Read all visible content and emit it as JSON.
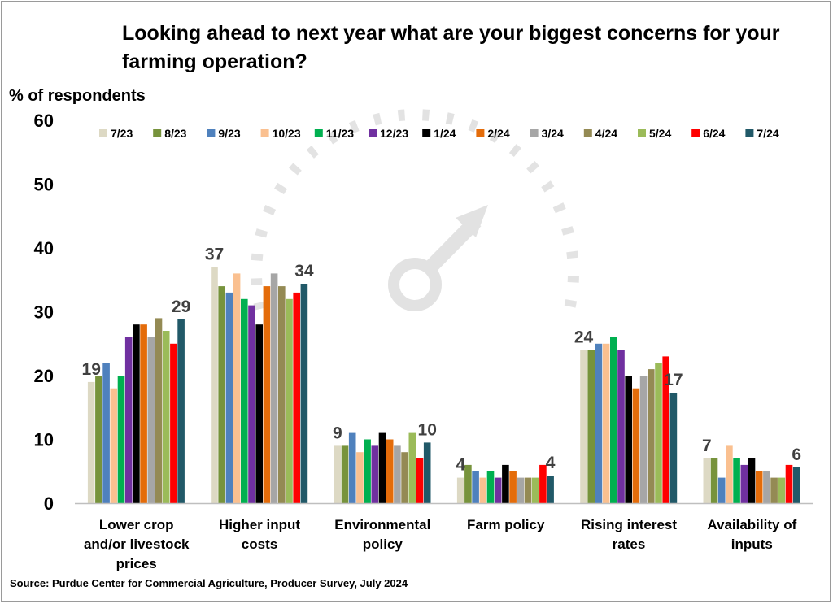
{
  "chart_data": {
    "type": "bar",
    "title": "Looking ahead to next year what are your biggest concerns for your farming operation?",
    "ylabel": "% of respondents",
    "source": "Source: Purdue Center for Commercial Agriculture, Producer Survey, July 2024",
    "ylim": [
      0,
      60
    ],
    "yticks": [
      0,
      10,
      20,
      30,
      40,
      50,
      60
    ],
    "grid": false,
    "legend_position": "top",
    "categories": [
      [
        "Lower crop",
        "and/or livestock",
        "prices"
      ],
      [
        "Higher input",
        "costs"
      ],
      [
        "Environmental",
        "policy"
      ],
      [
        "Farm policy"
      ],
      [
        "Rising interest",
        "rates"
      ],
      [
        "Availability of",
        "inputs"
      ]
    ],
    "series": [
      {
        "name": "7/23",
        "color": "#ddd9c4",
        "values": [
          19,
          37,
          9,
          4,
          24,
          7
        ]
      },
      {
        "name": "8/23",
        "color": "#77933c",
        "values": [
          20,
          34,
          9,
          6,
          24,
          7
        ]
      },
      {
        "name": "9/23",
        "color": "#4f81bd",
        "values": [
          22,
          33,
          11,
          5,
          25,
          4
        ]
      },
      {
        "name": "10/23",
        "color": "#fac090",
        "values": [
          18,
          36,
          8,
          4,
          25,
          9
        ]
      },
      {
        "name": "11/23",
        "color": "#00b050",
        "values": [
          20,
          32,
          10,
          5,
          26,
          7
        ]
      },
      {
        "name": "12/23",
        "color": "#7030a0",
        "values": [
          26,
          31,
          9,
          4,
          24,
          6
        ]
      },
      {
        "name": "1/24",
        "color": "#000000",
        "values": [
          28,
          28,
          11,
          6,
          20,
          7
        ]
      },
      {
        "name": "2/24",
        "color": "#e46c0a",
        "values": [
          28,
          34,
          10,
          5,
          18,
          5
        ]
      },
      {
        "name": "3/24",
        "color": "#a6a6a6",
        "values": [
          26,
          36,
          9,
          4,
          20,
          5
        ]
      },
      {
        "name": "4/24",
        "color": "#948a54",
        "values": [
          29,
          34,
          8,
          4,
          21,
          4
        ]
      },
      {
        "name": "5/24",
        "color": "#9bbb59",
        "values": [
          27,
          32,
          11,
          4,
          22,
          4
        ]
      },
      {
        "name": "6/24",
        "color": "#ff0000",
        "values": [
          25,
          33,
          7,
          6,
          23,
          6
        ]
      },
      {
        "name": "7/24",
        "color": "#215968",
        "values": [
          28.8,
          34.4,
          9.5,
          4.3,
          17.3,
          5.6
        ]
      }
    ],
    "data_labels": {
      "first": [
        "19",
        "37",
        "9",
        "4",
        "24",
        "7"
      ],
      "last": [
        "29",
        "34",
        "10",
        "4",
        "17",
        "6"
      ]
    }
  }
}
